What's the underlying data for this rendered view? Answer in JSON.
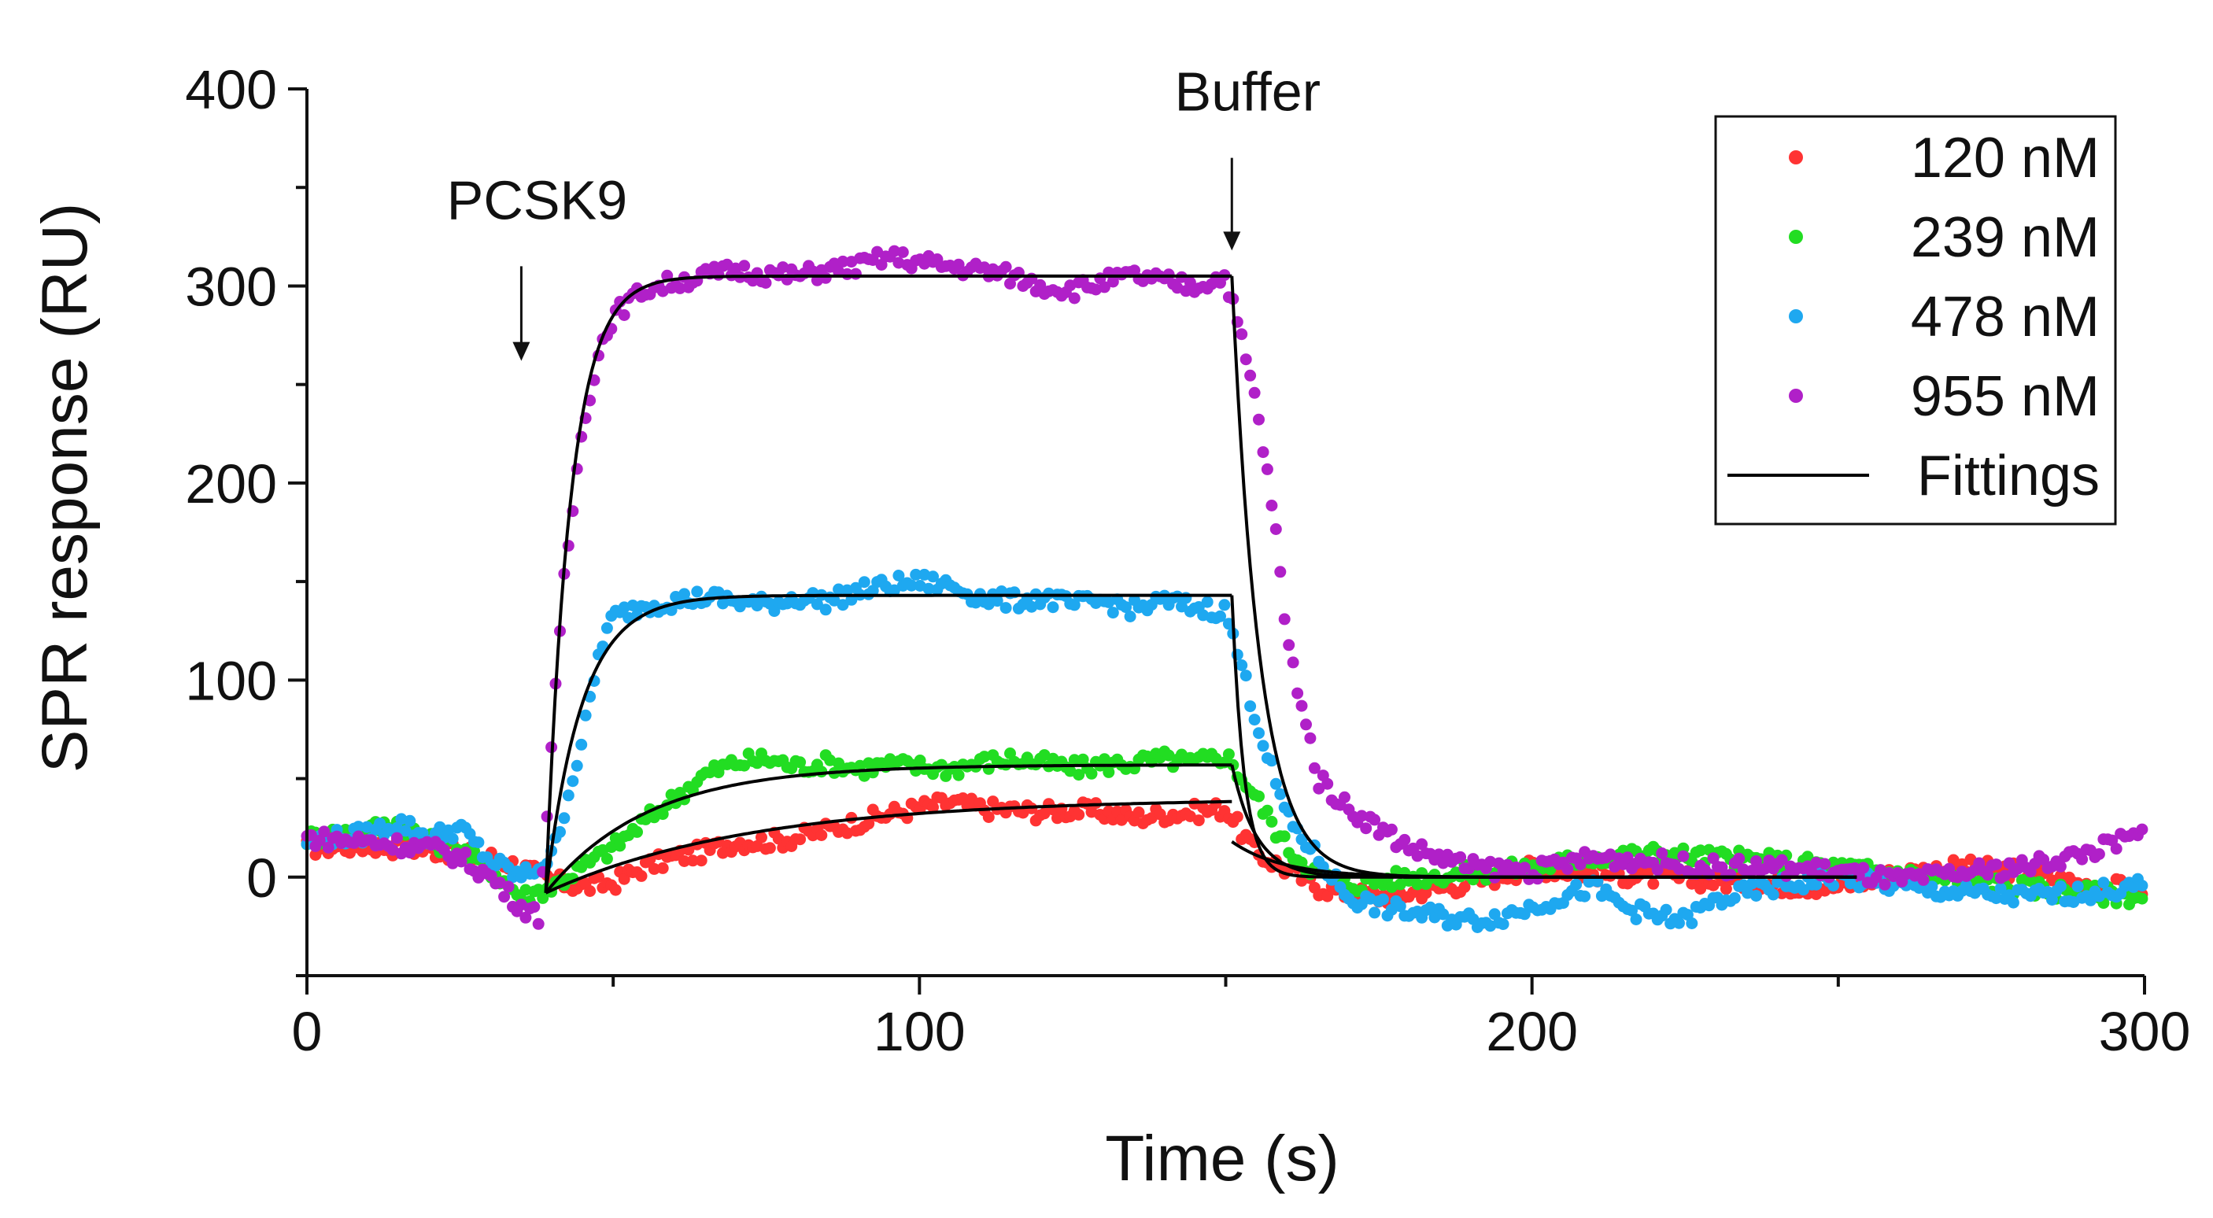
{
  "chart_data": {
    "type": "scatter",
    "title": "",
    "xlabel": "Time (s)",
    "ylabel": "SPR response (RU)",
    "xlim": [
      0,
      300
    ],
    "ylim": [
      -50,
      400
    ],
    "xticks": [
      0,
      100,
      200,
      300
    ],
    "yticks": [
      0,
      100,
      200,
      300,
      400
    ],
    "x_minor_step": 50,
    "y_minor_step": 50,
    "grid": false,
    "legend_position": "top-right",
    "annotations": [
      {
        "text": "PCSK9",
        "x": 35,
        "arrow_from_y": 310,
        "arrow_to_y": 262
      },
      {
        "text": "Buffer",
        "x": 151,
        "arrow_from_y": 365,
        "arrow_to_y": 318
      }
    ],
    "injection": {
      "start": 39,
      "end": 151,
      "fit_end": 253
    },
    "series": [
      {
        "name": "120 nM",
        "color": "#ff3333",
        "points": [
          [
            0,
            15
          ],
          [
            10,
            16
          ],
          [
            20,
            14
          ],
          [
            30,
            10
          ],
          [
            35,
            5
          ],
          [
            40,
            -2
          ],
          [
            45,
            -5
          ],
          [
            50,
            -3
          ],
          [
            55,
            5
          ],
          [
            60,
            10
          ],
          [
            65,
            13
          ],
          [
            70,
            18
          ],
          [
            75,
            18
          ],
          [
            80,
            20
          ],
          [
            85,
            24
          ],
          [
            90,
            28
          ],
          [
            95,
            32
          ],
          [
            100,
            35
          ],
          [
            105,
            38
          ],
          [
            110,
            35
          ],
          [
            115,
            34
          ],
          [
            120,
            33
          ],
          [
            125,
            34
          ],
          [
            130,
            33
          ],
          [
            135,
            30
          ],
          [
            140,
            32
          ],
          [
            145,
            33
          ],
          [
            150,
            35
          ],
          [
            155,
            12
          ],
          [
            160,
            4
          ],
          [
            165,
            -5
          ],
          [
            170,
            -8
          ],
          [
            175,
            -10
          ],
          [
            180,
            -8
          ],
          [
            190,
            -3
          ],
          [
            200,
            5
          ],
          [
            210,
            2
          ],
          [
            220,
            0
          ],
          [
            230,
            -2
          ],
          [
            240,
            -4
          ],
          [
            250,
            -5
          ],
          [
            260,
            2
          ],
          [
            270,
            5
          ],
          [
            280,
            3
          ],
          [
            290,
            -4
          ],
          [
            300,
            -6
          ]
        ],
        "fit": {
          "plateau": 40,
          "k_on": 0.03,
          "off_start": 18,
          "k_off": 0.12
        }
      },
      {
        "name": "239 nM",
        "color": "#22dd22",
        "points": [
          [
            0,
            20
          ],
          [
            10,
            24
          ],
          [
            15,
            28
          ],
          [
            20,
            18
          ],
          [
            25,
            14
          ],
          [
            30,
            4
          ],
          [
            35,
            -10
          ],
          [
            40,
            -5
          ],
          [
            45,
            5
          ],
          [
            50,
            15
          ],
          [
            55,
            28
          ],
          [
            60,
            40
          ],
          [
            65,
            52
          ],
          [
            70,
            58
          ],
          [
            75,
            60
          ],
          [
            80,
            56
          ],
          [
            85,
            58
          ],
          [
            90,
            55
          ],
          [
            95,
            57
          ],
          [
            100,
            56
          ],
          [
            105,
            55
          ],
          [
            110,
            58
          ],
          [
            115,
            60
          ],
          [
            120,
            58
          ],
          [
            125,
            55
          ],
          [
            130,
            57
          ],
          [
            135,
            58
          ],
          [
            140,
            60
          ],
          [
            145,
            58
          ],
          [
            150,
            62
          ],
          [
            155,
            40
          ],
          [
            160,
            15
          ],
          [
            165,
            2
          ],
          [
            170,
            -4
          ],
          [
            180,
            0
          ],
          [
            190,
            2
          ],
          [
            200,
            5
          ],
          [
            210,
            10
          ],
          [
            220,
            12
          ],
          [
            230,
            10
          ],
          [
            240,
            8
          ],
          [
            250,
            5
          ],
          [
            260,
            2
          ],
          [
            270,
            -2
          ],
          [
            280,
            -5
          ],
          [
            290,
            -8
          ],
          [
            300,
            -10
          ]
        ],
        "fit": {
          "plateau": 57,
          "k_on": 0.06,
          "off_start": 57,
          "k_off": 0.25
        }
      },
      {
        "name": "478 nM",
        "color": "#1ea8f0",
        "points": [
          [
            0,
            18
          ],
          [
            5,
            20
          ],
          [
            10,
            22
          ],
          [
            15,
            28
          ],
          [
            20,
            20
          ],
          [
            25,
            25
          ],
          [
            30,
            8
          ],
          [
            35,
            0
          ],
          [
            40,
            10
          ],
          [
            45,
            70
          ],
          [
            48,
            118
          ],
          [
            50,
            132
          ],
          [
            55,
            138
          ],
          [
            60,
            140
          ],
          [
            65,
            142
          ],
          [
            70,
            140
          ],
          [
            75,
            138
          ],
          [
            80,
            142
          ],
          [
            85,
            140
          ],
          [
            90,
            145
          ],
          [
            95,
            148
          ],
          [
            100,
            150
          ],
          [
            105,
            148
          ],
          [
            110,
            142
          ],
          [
            115,
            140
          ],
          [
            120,
            142
          ],
          [
            125,
            138
          ],
          [
            130,
            140
          ],
          [
            135,
            136
          ],
          [
            140,
            140
          ],
          [
            145,
            137
          ],
          [
            150,
            135
          ],
          [
            155,
            80
          ],
          [
            160,
            30
          ],
          [
            165,
            10
          ],
          [
            170,
            -10
          ],
          [
            175,
            -15
          ],
          [
            180,
            -18
          ],
          [
            185,
            -20
          ],
          [
            190,
            -22
          ],
          [
            195,
            -20
          ],
          [
            200,
            -15
          ],
          [
            205,
            -10
          ],
          [
            210,
            -5
          ],
          [
            215,
            -15
          ],
          [
            220,
            -20
          ],
          [
            225,
            -22
          ],
          [
            230,
            -12
          ],
          [
            235,
            -8
          ],
          [
            240,
            -5
          ],
          [
            250,
            0
          ],
          [
            260,
            -5
          ],
          [
            270,
            -8
          ],
          [
            280,
            -10
          ],
          [
            290,
            -8
          ],
          [
            300,
            -5
          ]
        ],
        "fit": {
          "plateau": 143,
          "k_on": 0.17,
          "off_start": 143,
          "k_off": 0.5
        }
      },
      {
        "name": "955 nM",
        "color": "#b020c8",
        "points": [
          [
            0,
            20
          ],
          [
            10,
            18
          ],
          [
            20,
            15
          ],
          [
            25,
            10
          ],
          [
            30,
            0
          ],
          [
            35,
            -15
          ],
          [
            38,
            -20
          ],
          [
            40,
            70
          ],
          [
            42,
            150
          ],
          [
            45,
            230
          ],
          [
            48,
            270
          ],
          [
            50,
            285
          ],
          [
            55,
            298
          ],
          [
            60,
            302
          ],
          [
            65,
            305
          ],
          [
            70,
            308
          ],
          [
            75,
            306
          ],
          [
            80,
            305
          ],
          [
            85,
            308
          ],
          [
            90,
            310
          ],
          [
            95,
            315
          ],
          [
            100,
            312
          ],
          [
            105,
            310
          ],
          [
            110,
            308
          ],
          [
            115,
            305
          ],
          [
            120,
            300
          ],
          [
            125,
            298
          ],
          [
            130,
            302
          ],
          [
            135,
            305
          ],
          [
            140,
            302
          ],
          [
            145,
            300
          ],
          [
            150,
            305
          ],
          [
            152,
            280
          ],
          [
            155,
            240
          ],
          [
            158,
            180
          ],
          [
            160,
            120
          ],
          [
            163,
            80
          ],
          [
            165,
            50
          ],
          [
            170,
            35
          ],
          [
            175,
            25
          ],
          [
            180,
            15
          ],
          [
            185,
            10
          ],
          [
            190,
            5
          ],
          [
            200,
            3
          ],
          [
            210,
            10
          ],
          [
            220,
            8
          ],
          [
            230,
            5
          ],
          [
            240,
            5
          ],
          [
            250,
            3
          ],
          [
            260,
            -2
          ],
          [
            270,
            2
          ],
          [
            280,
            5
          ],
          [
            290,
            12
          ],
          [
            300,
            22
          ]
        ],
        "fit": {
          "plateau": 305,
          "k_on": 0.25,
          "off_start": 305,
          "k_off": 0.22
        }
      },
      {
        "name": "Fittings",
        "color": "#000000",
        "style": "line"
      }
    ]
  }
}
